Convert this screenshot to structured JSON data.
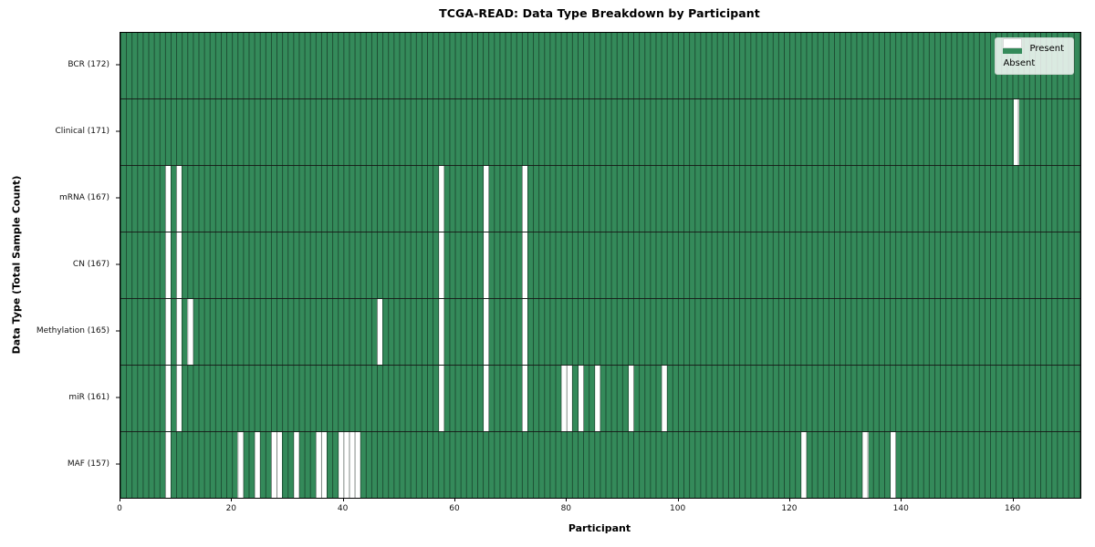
{
  "colors": {
    "present": "#348a5a",
    "absent": "#ffffff",
    "grid_line": "rgba(10,26,18,0.55)",
    "row_separator": "#1a231d",
    "plot_border": "#000000",
    "legend_background": "rgba(255,255,255,0.82)"
  },
  "chart_data": {
    "type": "heatmap",
    "title": "TCGA-READ: Data Type Breakdown by Participant",
    "xlabel": "Participant",
    "ylabel": "Data Type (Total Sample Count)",
    "n_participants": 172,
    "x_ticks": [
      0,
      20,
      40,
      60,
      80,
      100,
      120,
      140,
      160
    ],
    "xlim": [
      0,
      172
    ],
    "grid": "cell-borders",
    "legend_position": "upper right",
    "legend_entries": [
      {
        "label": "Present",
        "value": "present"
      },
      {
        "label": "Absent",
        "value": "absent"
      }
    ],
    "rows": [
      {
        "label": "BCR (172)",
        "data_type": "BCR",
        "total_sample_count": 172,
        "absent_participants": []
      },
      {
        "label": "Clinical (171)",
        "data_type": "Clinical",
        "total_sample_count": 171,
        "absent_participants": [
          160
        ]
      },
      {
        "label": "mRNA (167)",
        "data_type": "mRNA",
        "total_sample_count": 167,
        "absent_participants": [
          8,
          10,
          57,
          65,
          72
        ]
      },
      {
        "label": "CN (167)",
        "data_type": "CN",
        "total_sample_count": 167,
        "absent_participants": [
          8,
          10,
          57,
          65,
          72
        ]
      },
      {
        "label": "Methylation (165)",
        "data_type": "Methylation",
        "total_sample_count": 165,
        "absent_participants": [
          8,
          10,
          12,
          46,
          57,
          65,
          72
        ]
      },
      {
        "label": "miR (161)",
        "data_type": "miR",
        "total_sample_count": 161,
        "absent_participants": [
          8,
          10,
          57,
          65,
          72,
          79,
          80,
          82,
          85,
          91,
          97
        ]
      },
      {
        "label": "MAF (157)",
        "data_type": "MAF",
        "total_sample_count": 157,
        "absent_participants": [
          8,
          21,
          24,
          27,
          28,
          31,
          35,
          36,
          39,
          40,
          41,
          42,
          122,
          133,
          138
        ]
      }
    ]
  }
}
